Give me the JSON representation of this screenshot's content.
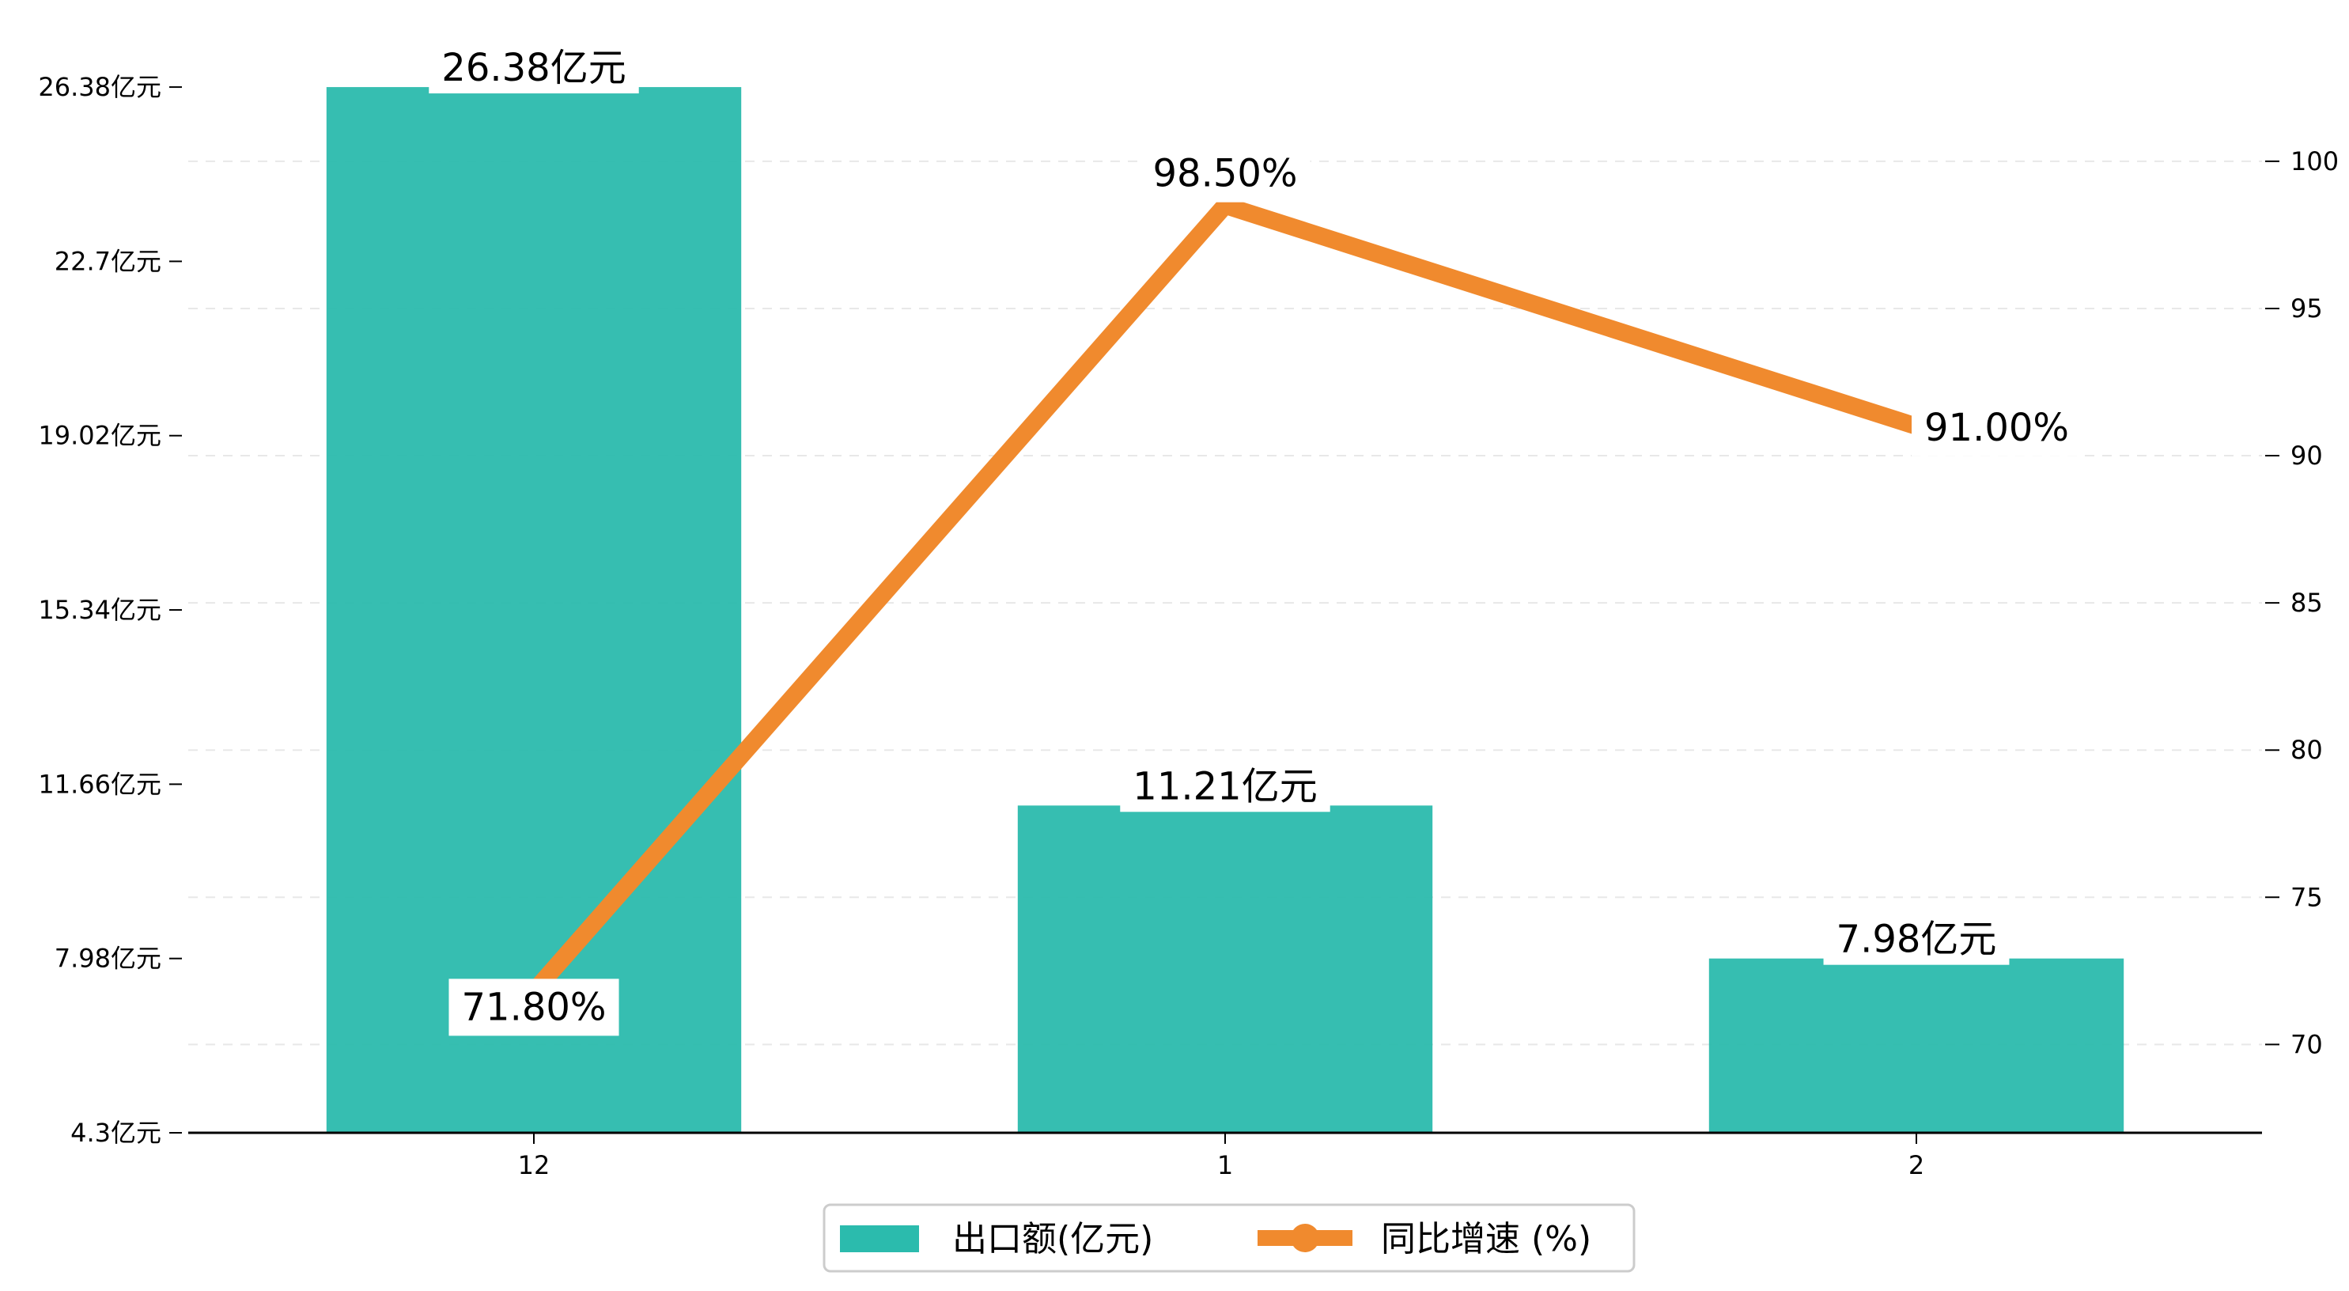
{
  "chart_data": {
    "type": "bar",
    "categories": [
      "12",
      "1",
      "2"
    ],
    "series": [
      {
        "name": "出口额(亿元)",
        "type": "bar",
        "axis": "left",
        "values": [
          26.38,
          11.21,
          7.98
        ],
        "labels": [
          "26.38亿元",
          "11.21亿元",
          "7.98亿元"
        ],
        "color": "#2BBBAD"
      },
      {
        "name": "同比增速 (%)",
        "type": "line",
        "axis": "right",
        "values": [
          71.8,
          98.5,
          91.0
        ],
        "labels": [
          "71.80%",
          "98.50%",
          "91.00%"
        ],
        "color": "#F08A2E"
      }
    ],
    "y_left": {
      "ylim": [
        4.3,
        27.3
      ],
      "ticks": [
        4.3,
        7.98,
        11.66,
        15.34,
        19.02,
        22.7,
        26.38
      ],
      "tick_labels": [
        "4.3亿元",
        "7.98亿元",
        "11.66亿元",
        "15.34亿元",
        "19.02亿元",
        "22.7亿元",
        "26.38亿元"
      ]
    },
    "y_right": {
      "ylim": [
        67,
        104
      ],
      "ticks": [
        70,
        75,
        80,
        85,
        90,
        95,
        100
      ],
      "tick_labels": [
        "70",
        "75",
        "80",
        "85",
        "90",
        "95",
        "100"
      ]
    },
    "title": "",
    "xlabel": "",
    "ylabel": "",
    "grid": "horizontal-dashed",
    "legend": "bottom-center"
  }
}
